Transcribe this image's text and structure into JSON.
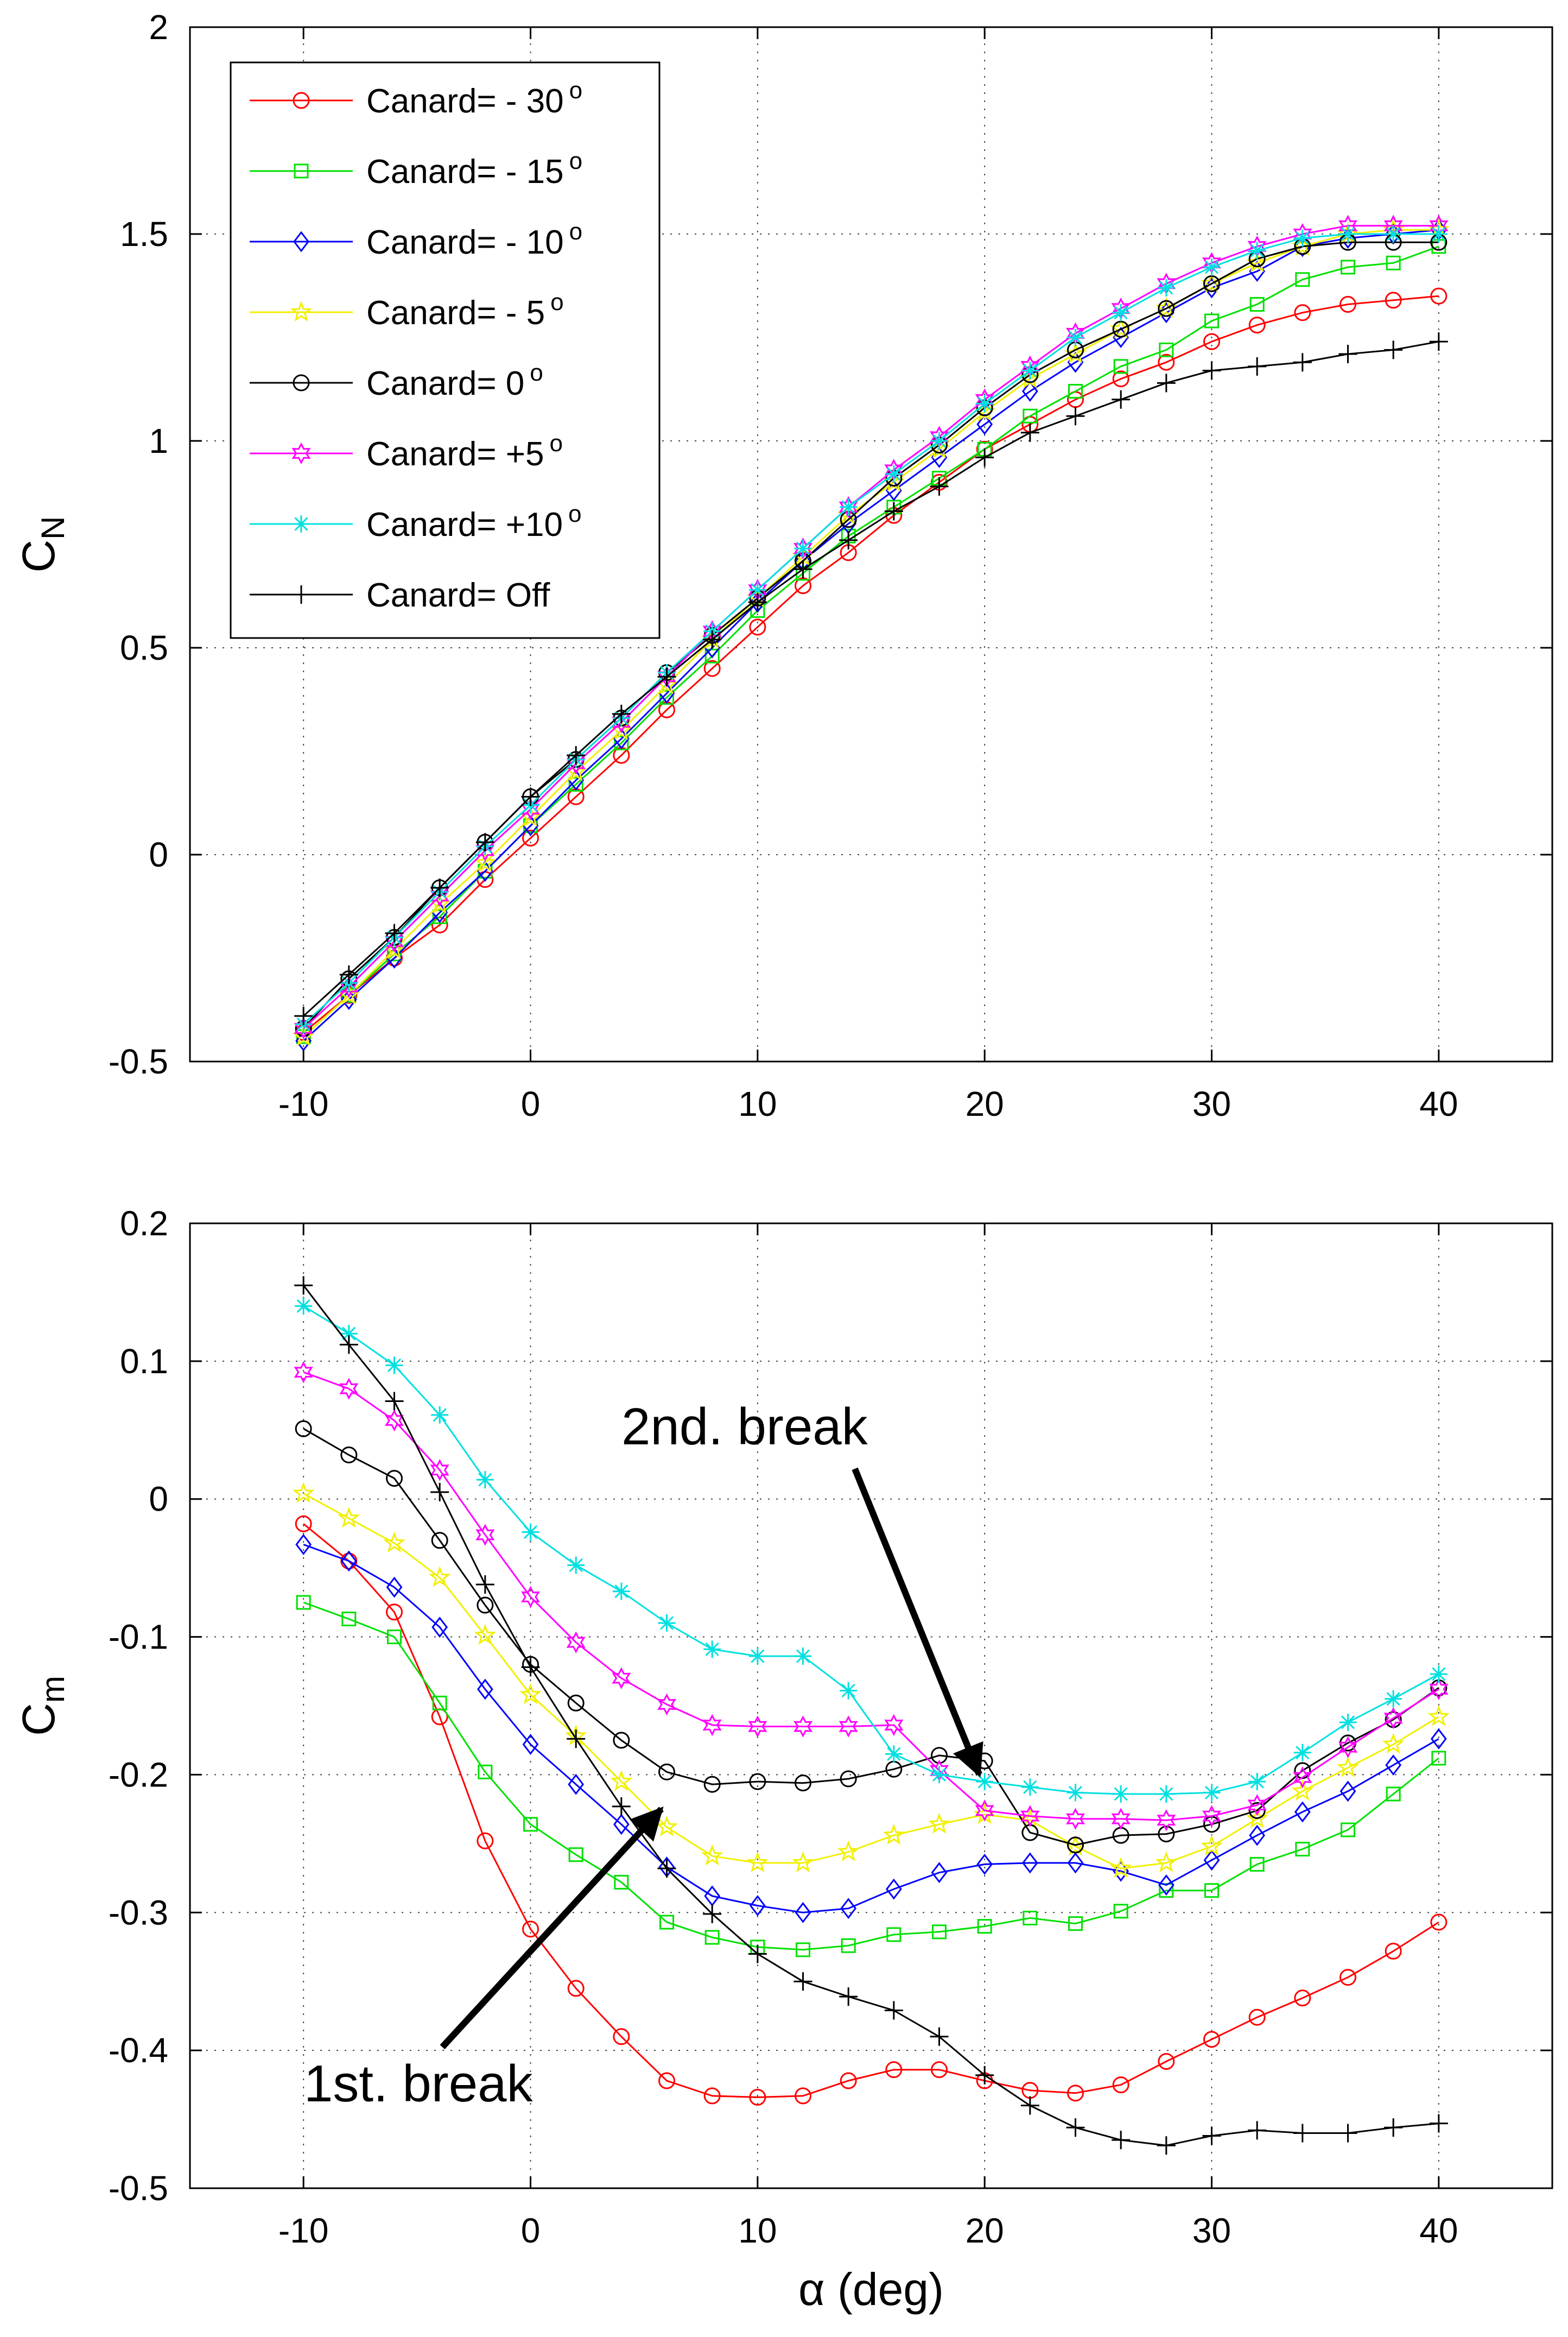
{
  "chart_data": [
    {
      "type": "line",
      "ylabel_main": "C",
      "ylabel_sub": "N",
      "xlabel": "",
      "xlim": [
        -15,
        45
      ],
      "ylim": [
        -0.5,
        2
      ],
      "xticks": [
        -10,
        0,
        10,
        20,
        30,
        40
      ],
      "yticks": [
        -0.5,
        0,
        0.5,
        1,
        1.5,
        2
      ],
      "grid": true,
      "legend_position": "top-left",
      "legend": [
        {
          "label": "Canard= - 30",
          "sup": "o"
        },
        {
          "label": "Canard= - 15",
          "sup": "o"
        },
        {
          "label": "Canard= - 10",
          "sup": "o"
        },
        {
          "label": "Canard= - 5",
          "sup": "o"
        },
        {
          "label": "Canard=   0",
          "sup": "o"
        },
        {
          "label": "Canard= +5",
          "sup": "o"
        },
        {
          "label": "Canard= +10",
          "sup": "o"
        },
        {
          "label": "Canard= Off",
          "sup": ""
        }
      ],
      "x": [
        -10,
        -8,
        -6,
        -4,
        -2,
        0,
        2,
        4,
        6,
        8,
        10,
        12,
        14,
        16,
        18,
        20,
        22,
        24,
        26,
        28,
        30,
        32,
        34,
        36,
        38,
        40
      ],
      "series": [
        {
          "name": "Canard= -30",
          "color": "#ff0000",
          "marker": "circle",
          "values": [
            -0.43,
            -0.34,
            -0.25,
            -0.17,
            -0.06,
            0.04,
            0.14,
            0.24,
            0.35,
            0.45,
            0.55,
            0.65,
            0.73,
            0.82,
            0.9,
            0.98,
            1.04,
            1.1,
            1.15,
            1.19,
            1.24,
            1.28,
            1.31,
            1.33,
            1.34,
            1.35
          ]
        },
        {
          "name": "Canard= -15",
          "color": "#00e000",
          "marker": "square",
          "values": [
            -0.44,
            -0.34,
            -0.24,
            -0.15,
            -0.04,
            0.07,
            0.17,
            0.27,
            0.38,
            0.48,
            0.59,
            0.68,
            0.77,
            0.84,
            0.91,
            0.98,
            1.06,
            1.12,
            1.18,
            1.22,
            1.29,
            1.33,
            1.39,
            1.42,
            1.43,
            1.47
          ]
        },
        {
          "name": "Canard= -10",
          "color": "#0000ff",
          "marker": "diamond",
          "values": [
            -0.45,
            -0.35,
            -0.25,
            -0.14,
            -0.04,
            0.07,
            0.18,
            0.28,
            0.39,
            0.5,
            0.61,
            0.71,
            0.8,
            0.88,
            0.96,
            1.04,
            1.12,
            1.19,
            1.25,
            1.31,
            1.37,
            1.41,
            1.47,
            1.49,
            1.5,
            1.51
          ]
        },
        {
          "name": "Canard= -5",
          "color": "#f0f000",
          "marker": "star5",
          "values": [
            -0.44,
            -0.34,
            -0.23,
            -0.12,
            -0.02,
            0.09,
            0.2,
            0.3,
            0.41,
            0.52,
            0.62,
            0.72,
            0.82,
            0.9,
            0.98,
            1.07,
            1.15,
            1.21,
            1.27,
            1.32,
            1.38,
            1.43,
            1.47,
            1.5,
            1.51,
            1.51
          ]
        },
        {
          "name": "Canard= 0",
          "color": "#000000",
          "marker": "circle",
          "values": [
            -0.42,
            -0.3,
            -0.2,
            -0.08,
            0.03,
            0.14,
            0.23,
            0.33,
            0.44,
            0.53,
            0.62,
            0.71,
            0.81,
            0.91,
            0.99,
            1.08,
            1.16,
            1.22,
            1.27,
            1.32,
            1.38,
            1.44,
            1.47,
            1.48,
            1.48,
            1.48
          ]
        },
        {
          "name": "Canard= +5",
          "color": "#ff00ff",
          "marker": "star6",
          "values": [
            -0.42,
            -0.32,
            -0.21,
            -0.1,
            0.01,
            0.11,
            0.22,
            0.32,
            0.43,
            0.54,
            0.64,
            0.74,
            0.84,
            0.93,
            1.01,
            1.1,
            1.18,
            1.26,
            1.32,
            1.38,
            1.43,
            1.47,
            1.5,
            1.52,
            1.52,
            1.52
          ]
        },
        {
          "name": "Canard= +10",
          "color": "#00e0e0",
          "marker": "asterisk",
          "values": [
            -0.41,
            -0.31,
            -0.2,
            -0.09,
            0.02,
            0.12,
            0.23,
            0.33,
            0.44,
            0.54,
            0.64,
            0.74,
            0.84,
            0.92,
            1.0,
            1.09,
            1.17,
            1.25,
            1.31,
            1.37,
            1.42,
            1.46,
            1.49,
            1.5,
            1.5,
            1.5
          ]
        },
        {
          "name": "Canard= Off",
          "color": "#000000",
          "marker": "plus",
          "values": [
            -0.39,
            -0.29,
            -0.19,
            -0.08,
            0.03,
            0.14,
            0.24,
            0.34,
            0.43,
            0.52,
            0.61,
            0.69,
            0.76,
            0.83,
            0.89,
            0.96,
            1.02,
            1.06,
            1.1,
            1.14,
            1.17,
            1.18,
            1.19,
            1.21,
            1.22,
            1.24
          ]
        }
      ]
    },
    {
      "type": "line",
      "ylabel_main": "C",
      "ylabel_sub": "m",
      "xlabel": "α (deg)",
      "xlim": [
        -15,
        45
      ],
      "ylim": [
        -0.5,
        0.2
      ],
      "xticks": [
        -10,
        0,
        10,
        20,
        30,
        40
      ],
      "yticks": [
        -0.5,
        -0.4,
        -0.3,
        -0.2,
        -0.1,
        0,
        0.1,
        0.2
      ],
      "grid": true,
      "annotations": [
        {
          "text": "2nd. break",
          "tip_x": 20,
          "tip_y": -0.19
        },
        {
          "text": "1st. break",
          "tip_x": 6,
          "tip_y": -0.215
        }
      ],
      "x": [
        -10,
        -8,
        -6,
        -4,
        -2,
        0,
        2,
        4,
        6,
        8,
        10,
        12,
        14,
        16,
        18,
        20,
        22,
        24,
        26,
        28,
        30,
        32,
        34,
        36,
        38,
        40
      ],
      "series": [
        {
          "name": "Canard= -30",
          "color": "#ff0000",
          "marker": "circle",
          "values": [
            -0.018,
            -0.045,
            -0.082,
            -0.158,
            -0.248,
            -0.312,
            -0.355,
            -0.39,
            -0.422,
            -0.433,
            -0.434,
            -0.433,
            -0.422,
            -0.414,
            -0.414,
            -0.422,
            -0.429,
            -0.431,
            -0.425,
            -0.408,
            -0.392,
            -0.376,
            -0.362,
            -0.347,
            -0.328,
            -0.307
          ]
        },
        {
          "name": "Canard= -15",
          "color": "#00e000",
          "marker": "square",
          "values": [
            -0.075,
            -0.087,
            -0.1,
            -0.148,
            -0.198,
            -0.236,
            -0.258,
            -0.278,
            -0.307,
            -0.318,
            -0.325,
            -0.327,
            -0.324,
            -0.316,
            -0.314,
            -0.31,
            -0.304,
            -0.308,
            -0.299,
            -0.284,
            -0.284,
            -0.265,
            -0.254,
            -0.24,
            -0.214,
            -0.188
          ]
        },
        {
          "name": "Canard= -10",
          "color": "#0000ff",
          "marker": "diamond",
          "values": [
            -0.033,
            -0.045,
            -0.064,
            -0.093,
            -0.138,
            -0.178,
            -0.207,
            -0.236,
            -0.267,
            -0.288,
            -0.295,
            -0.3,
            -0.297,
            -0.283,
            -0.271,
            -0.265,
            -0.264,
            -0.264,
            -0.27,
            -0.28,
            -0.262,
            -0.244,
            -0.227,
            -0.212,
            -0.193,
            -0.174
          ]
        },
        {
          "name": "Canard= -5",
          "color": "#f0f000",
          "marker": "star5",
          "values": [
            0.004,
            -0.014,
            -0.032,
            -0.057,
            -0.099,
            -0.142,
            -0.172,
            -0.205,
            -0.238,
            -0.259,
            -0.264,
            -0.264,
            -0.256,
            -0.244,
            -0.236,
            -0.229,
            -0.233,
            -0.252,
            -0.268,
            -0.264,
            -0.252,
            -0.232,
            -0.212,
            -0.195,
            -0.178,
            -0.158
          ]
        },
        {
          "name": "Canard= 0",
          "color": "#000000",
          "marker": "circle",
          "values": [
            0.051,
            0.032,
            0.015,
            -0.03,
            -0.077,
            -0.12,
            -0.148,
            -0.175,
            -0.198,
            -0.207,
            -0.205,
            -0.206,
            -0.203,
            -0.196,
            -0.186,
            -0.19,
            -0.242,
            -0.251,
            -0.244,
            -0.243,
            -0.236,
            -0.226,
            -0.197,
            -0.177,
            -0.16,
            -0.137
          ]
        },
        {
          "name": "Canard= +5",
          "color": "#ff00ff",
          "marker": "star6",
          "values": [
            0.092,
            0.08,
            0.057,
            0.021,
            -0.026,
            -0.071,
            -0.104,
            -0.13,
            -0.149,
            -0.164,
            -0.165,
            -0.165,
            -0.165,
            -0.164,
            -0.197,
            -0.226,
            -0.23,
            -0.232,
            -0.232,
            -0.233,
            -0.23,
            -0.222,
            -0.202,
            -0.18,
            -0.159,
            -0.138
          ]
        },
        {
          "name": "Canard= +10",
          "color": "#00e0e0",
          "marker": "asterisk",
          "values": [
            0.14,
            0.12,
            0.097,
            0.061,
            0.014,
            -0.024,
            -0.048,
            -0.067,
            -0.09,
            -0.109,
            -0.114,
            -0.114,
            -0.139,
            -0.185,
            -0.2,
            -0.205,
            -0.209,
            -0.213,
            -0.214,
            -0.214,
            -0.213,
            -0.205,
            -0.184,
            -0.162,
            -0.145,
            -0.127
          ]
        },
        {
          "name": "Canard= Off",
          "color": "#000000",
          "marker": "plus",
          "values": [
            0.155,
            0.112,
            0.071,
            0.005,
            -0.062,
            -0.122,
            -0.174,
            -0.223,
            -0.268,
            -0.301,
            -0.33,
            -0.35,
            -0.361,
            -0.371,
            -0.39,
            -0.418,
            -0.44,
            -0.456,
            -0.465,
            -0.469,
            -0.462,
            -0.458,
            -0.46,
            -0.46,
            -0.456,
            -0.453
          ]
        }
      ]
    }
  ]
}
